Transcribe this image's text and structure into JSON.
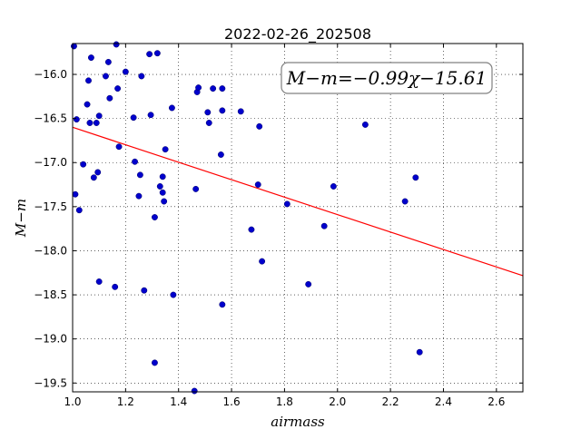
{
  "chart_data": {
    "type": "scatter",
    "title": "2022-02-26_202508",
    "xlabel": "airmass",
    "ylabel": "M−m",
    "xlim": [
      1.0,
      2.7
    ],
    "ylim": [
      -19.6,
      -15.65
    ],
    "xticks": [
      1.0,
      1.2,
      1.4,
      1.6,
      1.8,
      2.0,
      2.2,
      2.4,
      2.6
    ],
    "xtick_labels": [
      "1.0",
      "1.2",
      "1.4",
      "1.6",
      "1.8",
      "2.0",
      "2.2",
      "2.4",
      "2.6"
    ],
    "yticks": [
      -16.0,
      -16.5,
      -17.0,
      -17.5,
      -18.0,
      -18.5,
      -19.0,
      -19.5
    ],
    "ytick_labels": [
      "−16.0",
      "−16.5",
      "−17.0",
      "−17.5",
      "−18.0",
      "−18.5",
      "−19.0",
      "−19.5"
    ],
    "grid": true,
    "annotation": "M−m=−0.99χ−15.61",
    "fit": {
      "slope": -0.99,
      "intercept": -15.61,
      "color": "#ff0000"
    },
    "marker_color": "#0000cc",
    "points": [
      [
        1.005,
        -15.68
      ],
      [
        1.015,
        -16.51
      ],
      [
        1.025,
        -17.54
      ],
      [
        1.01,
        -17.36
      ],
      [
        1.04,
        -17.02
      ],
      [
        1.055,
        -16.34
      ],
      [
        1.06,
        -16.07
      ],
      [
        1.065,
        -16.55
      ],
      [
        1.07,
        -15.81
      ],
      [
        1.08,
        -17.17
      ],
      [
        1.09,
        -16.55
      ],
      [
        1.095,
        -17.11
      ],
      [
        1.1,
        -16.47
      ],
      [
        1.1,
        -18.35
      ],
      [
        1.125,
        -16.02
      ],
      [
        1.135,
        -15.86
      ],
      [
        1.14,
        -16.27
      ],
      [
        1.16,
        -18.41
      ],
      [
        1.165,
        -15.66
      ],
      [
        1.17,
        -16.16
      ],
      [
        1.175,
        -16.82
      ],
      [
        1.2,
        -15.97
      ],
      [
        1.23,
        -16.49
      ],
      [
        1.235,
        -16.99
      ],
      [
        1.25,
        -17.38
      ],
      [
        1.255,
        -17.14
      ],
      [
        1.26,
        -16.02
      ],
      [
        1.27,
        -18.45
      ],
      [
        1.29,
        -15.77
      ],
      [
        1.295,
        -16.46
      ],
      [
        1.31,
        -17.62
      ],
      [
        1.31,
        -19.27
      ],
      [
        1.32,
        -15.76
      ],
      [
        1.33,
        -17.27
      ],
      [
        1.34,
        -17.16
      ],
      [
        1.34,
        -17.34
      ],
      [
        1.345,
        -17.44
      ],
      [
        1.35,
        -16.85
      ],
      [
        1.375,
        -16.38
      ],
      [
        1.38,
        -18.5
      ],
      [
        1.46,
        -19.59
      ],
      [
        1.465,
        -17.3
      ],
      [
        1.47,
        -16.2
      ],
      [
        1.475,
        -16.15
      ],
      [
        1.51,
        -16.43
      ],
      [
        1.515,
        -16.55
      ],
      [
        1.53,
        -16.16
      ],
      [
        1.56,
        -16.91
      ],
      [
        1.565,
        -16.16
      ],
      [
        1.565,
        -16.41
      ],
      [
        1.565,
        -18.61
      ],
      [
        1.635,
        -16.42
      ],
      [
        1.675,
        -17.76
      ],
      [
        1.7,
        -17.25
      ],
      [
        1.705,
        -16.59
      ],
      [
        1.715,
        -18.12
      ],
      [
        1.81,
        -17.47
      ],
      [
        1.89,
        -18.38
      ],
      [
        1.95,
        -17.72
      ],
      [
        1.985,
        -17.27
      ],
      [
        2.105,
        -16.57
      ],
      [
        2.255,
        -17.44
      ],
      [
        2.295,
        -17.17
      ],
      [
        2.31,
        -19.15
      ]
    ]
  }
}
